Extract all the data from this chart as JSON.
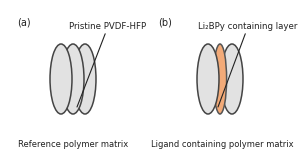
{
  "panel_a_label": "(a)",
  "panel_b_label": "(b)",
  "annotation_a": "Pristine PVDF-HFP",
  "annotation_b": "Li₂BPy containing layer",
  "subtitle_a": "Reference polymer matrix",
  "subtitle_b": "Ligand containing polymer matrix",
  "gray_fill": "#e2e2e2",
  "gray_edge": "#444444",
  "orange_fill": "#f2aa78",
  "orange_edge": "#555555",
  "background": "#ffffff",
  "text_color": "#222222",
  "font_size_label": 7.0,
  "font_size_annot": 6.2,
  "font_size_sub": 6.0,
  "linewidth": 1.1
}
